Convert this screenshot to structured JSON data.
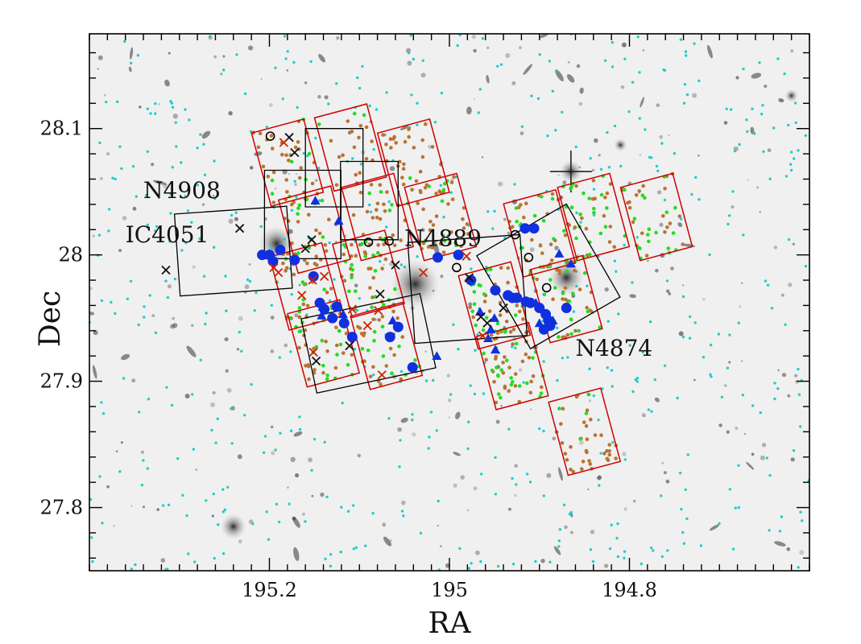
{
  "chart_data": {
    "type": "scatter",
    "title": "",
    "xlabel": "RA",
    "ylabel": "Dec",
    "xlim": [
      195.4,
      194.6
    ],
    "ylim": [
      27.75,
      28.175
    ],
    "x_reversed": true,
    "x_ticks": [
      195.2,
      195,
      194.8
    ],
    "x_tick_labels": [
      "195.2",
      "195",
      "194.8"
    ],
    "y_ticks": [
      27.8,
      27.9,
      28.0,
      28.1
    ],
    "y_tick_labels": [
      "27.8",
      "27.9",
      "28",
      "28.1"
    ],
    "background": "greyscale sky image of the Coma cluster core",
    "grid": false,
    "legend": "none",
    "colors": {
      "red_footprint": "#cc0000",
      "black_footprint": "#000000",
      "blue_points": "#1030e0",
      "green_points": "#22dd22",
      "brown_points": "#b87333",
      "cyan_points": "#22cccc",
      "red_cross": "#cc2200",
      "black_cross": "#111111"
    },
    "annotations": [
      {
        "text": "N4908",
        "ra": 195.34,
        "dec": 28.045
      },
      {
        "text": "IC4051",
        "ra": 195.36,
        "dec": 28.01
      },
      {
        "text": "N4889",
        "ra": 195.05,
        "dec": 28.007
      },
      {
        "text": "N4874",
        "ra": 194.86,
        "dec": 27.92
      }
    ],
    "red_footprints": [
      {
        "center": [
          195.18,
          28.073
        ],
        "angle": -15
      },
      {
        "center": [
          195.11,
          28.085
        ],
        "angle": -15
      },
      {
        "center": [
          195.04,
          28.073
        ],
        "angle": -15
      },
      {
        "center": [
          195.15,
          28.02
        ],
        "angle": -15
      },
      {
        "center": [
          195.08,
          28.03
        ],
        "angle": -15
      },
      {
        "center": [
          195.01,
          28.03
        ],
        "angle": -15
      },
      {
        "center": [
          195.16,
          27.975
        ],
        "angle": -15
      },
      {
        "center": [
          195.09,
          27.985
        ],
        "angle": -15
      },
      {
        "center": [
          195.14,
          27.93
        ],
        "angle": -15
      },
      {
        "center": [
          195.07,
          27.928
        ],
        "angle": -15
      },
      {
        "center": [
          194.95,
          27.96
        ],
        "angle": -15
      },
      {
        "center": [
          194.93,
          27.912
        ],
        "angle": -15
      },
      {
        "center": [
          194.9,
          28.017
        ],
        "angle": -15
      },
      {
        "center": [
          194.87,
          27.965
        ],
        "angle": -15
      },
      {
        "center": [
          194.84,
          28.03
        ],
        "angle": -15
      },
      {
        "center": [
          194.77,
          28.03
        ],
        "angle": -15
      },
      {
        "center": [
          194.85,
          27.86
        ],
        "angle": -15
      }
    ],
    "black_footprints": [
      {
        "center": [
          195.163,
          28.032
        ],
        "angle": 0
      },
      {
        "center": [
          195.128,
          28.069
        ],
        "angle": 0
      },
      {
        "center": [
          195.089,
          28.043
        ],
        "angle": 0
      },
      {
        "center": [
          195.24,
          28.003
        ],
        "angle": -4
      },
      {
        "center": [
          195.09,
          27.93
        ],
        "angle": -12
      },
      {
        "center": [
          194.98,
          27.973
        ],
        "angle": -4
      },
      {
        "center": [
          194.89,
          27.983
        ],
        "angle": -30
      }
    ],
    "blue_circles": [
      [
        195.208,
        28.0
      ],
      [
        195.196,
        27.995
      ],
      [
        195.2,
        28.0
      ],
      [
        195.188,
        28.004
      ],
      [
        195.172,
        27.996
      ],
      [
        195.151,
        27.983
      ],
      [
        195.144,
        27.962
      ],
      [
        195.139,
        27.957
      ],
      [
        195.125,
        27.959
      ],
      [
        195.13,
        27.95
      ],
      [
        195.117,
        27.946
      ],
      [
        195.108,
        27.935
      ],
      [
        195.066,
        27.935
      ],
      [
        195.057,
        27.943
      ],
      [
        195.041,
        27.911
      ],
      [
        195.013,
        27.998
      ],
      [
        194.99,
        28.0
      ],
      [
        194.976,
        27.98
      ],
      [
        194.949,
        27.972
      ],
      [
        194.935,
        27.968
      ],
      [
        194.93,
        27.966
      ],
      [
        194.925,
        27.966
      ],
      [
        194.915,
        27.963
      ],
      [
        194.91,
        27.962
      ],
      [
        194.9,
        27.958
      ],
      [
        194.893,
        27.953
      ],
      [
        194.89,
        27.948
      ],
      [
        194.888,
        27.944
      ],
      [
        194.895,
        27.941
      ],
      [
        194.906,
        28.021
      ],
      [
        194.916,
        28.021
      ],
      [
        194.87,
        27.958
      ]
    ],
    "blue_triangles": [
      [
        195.149,
        28.043
      ],
      [
        195.123,
        28.027
      ],
      [
        195.141,
        27.959
      ],
      [
        195.142,
        27.952
      ],
      [
        195.118,
        27.953
      ],
      [
        195.063,
        27.948
      ],
      [
        195.014,
        27.92
      ],
      [
        194.954,
        27.941
      ],
      [
        194.966,
        27.955
      ],
      [
        194.95,
        27.95
      ],
      [
        194.957,
        27.934
      ],
      [
        194.949,
        27.925
      ],
      [
        194.904,
        27.962
      ],
      [
        194.878,
        28.001
      ],
      [
        194.865,
        27.993
      ],
      [
        194.9,
        27.946
      ],
      [
        194.885,
        27.948
      ]
    ],
    "black_open_circles": [
      [
        195.199,
        28.094
      ],
      [
        195.09,
        28.01
      ],
      [
        195.067,
        28.011
      ],
      [
        194.992,
        27.99
      ],
      [
        194.927,
        28.016
      ],
      [
        194.912,
        27.998
      ],
      [
        194.892,
        27.974
      ]
    ],
    "black_crosses": [
      [
        195.315,
        27.988
      ],
      [
        195.233,
        28.021
      ],
      [
        195.178,
        28.093
      ],
      [
        195.172,
        28.081
      ],
      [
        195.16,
        28.005
      ],
      [
        195.153,
        28.012
      ],
      [
        195.06,
        27.992
      ],
      [
        195.077,
        27.969
      ],
      [
        194.978,
        27.982
      ],
      [
        194.965,
        27.951
      ],
      [
        194.958,
        27.946
      ],
      [
        194.94,
        27.958
      ],
      [
        195.111,
        27.928
      ],
      [
        195.148,
        27.916
      ]
    ],
    "red_crosses": [
      [
        195.184,
        28.089
      ],
      [
        195.195,
        27.99
      ],
      [
        195.19,
        27.986
      ],
      [
        195.164,
        27.968
      ],
      [
        195.152,
        27.98
      ],
      [
        195.139,
        27.983
      ],
      [
        195.108,
        27.957
      ],
      [
        195.091,
        27.944
      ],
      [
        195.079,
        27.956
      ],
      [
        195.029,
        27.986
      ],
      [
        194.981,
        27.999
      ],
      [
        194.963,
        27.936
      ],
      [
        195.151,
        27.923
      ],
      [
        195.075,
        27.905
      ]
    ],
    "green_points_count": 220,
    "brown_points_count": 430,
    "cyan_points_count": 520,
    "bright_star": {
      "ra": 194.865,
      "dec": 28.066
    },
    "galaxy_blobs": [
      {
        "ra": 195.038,
        "dec": 27.977,
        "size": 30
      },
      {
        "ra": 195.192,
        "dec": 28.009,
        "size": 22
      },
      {
        "ra": 194.87,
        "dec": 27.982,
        "size": 22
      },
      {
        "ra": 195.24,
        "dec": 27.785,
        "size": 16
      },
      {
        "ra": 194.81,
        "dec": 28.087,
        "size": 8
      },
      {
        "ra": 194.62,
        "dec": 28.126,
        "size": 8
      }
    ]
  }
}
